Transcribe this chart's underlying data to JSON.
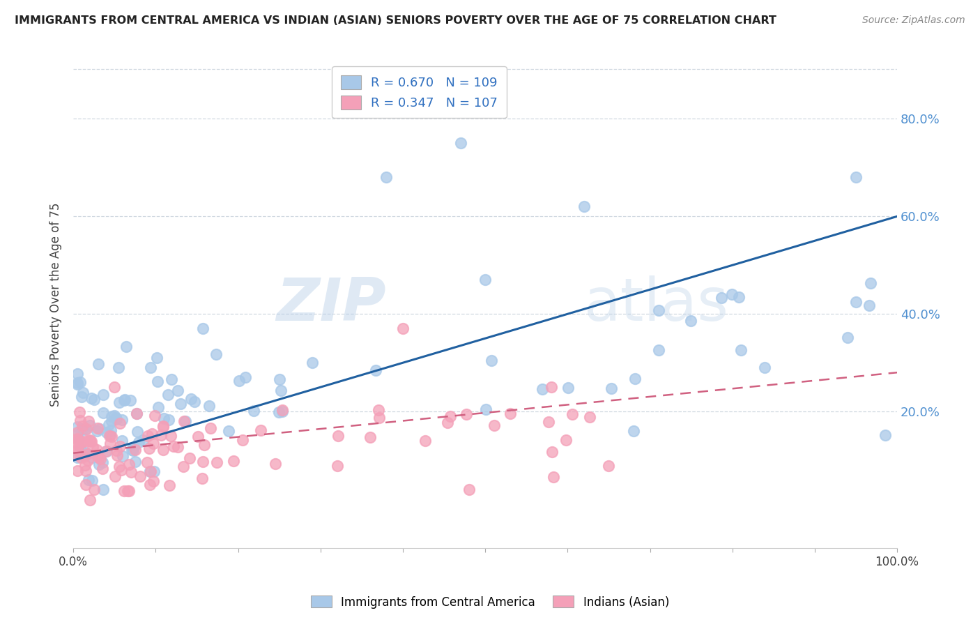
{
  "title": "IMMIGRANTS FROM CENTRAL AMERICA VS INDIAN (ASIAN) SENIORS POVERTY OVER THE AGE OF 75 CORRELATION CHART",
  "source": "Source: ZipAtlas.com",
  "ylabel": "Seniors Poverty Over the Age of 75",
  "yticks_labels": [
    "80.0%",
    "60.0%",
    "40.0%",
    "20.0%"
  ],
  "ytick_vals": [
    0.8,
    0.6,
    0.4,
    0.2
  ],
  "xlim": [
    0.0,
    1.0
  ],
  "ylim": [
    -0.08,
    0.92
  ],
  "blue_R": "0.670",
  "blue_N": "109",
  "pink_R": "0.347",
  "pink_N": "107",
  "legend_label_blue": "Immigrants from Central America",
  "legend_label_pink": "Indians (Asian)",
  "blue_color": "#a8c8e8",
  "pink_color": "#f4a0b8",
  "blue_line_color": "#2060a0",
  "pink_line_color": "#d06080",
  "watermark_zip": "ZIP",
  "watermark_atlas": "atlas",
  "background_color": "#ffffff",
  "grid_color": "#d0d8e0",
  "right_tick_color": "#5090d0"
}
